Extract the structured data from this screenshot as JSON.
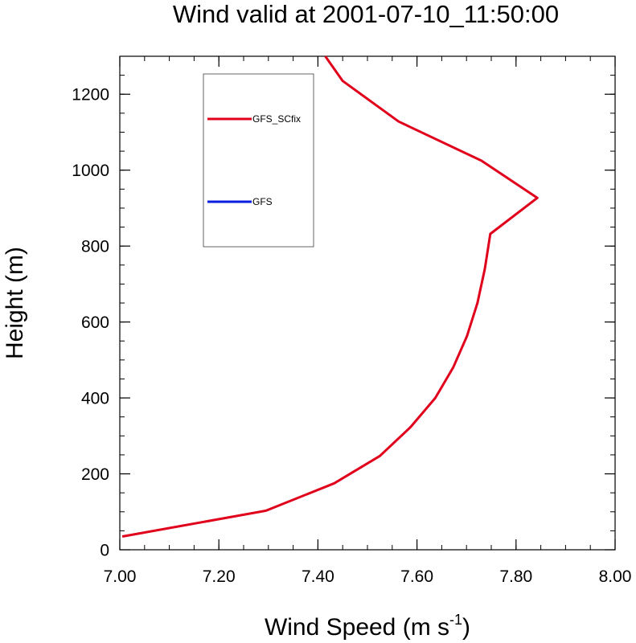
{
  "chart_data": {
    "type": "line",
    "title": "Wind valid at 2001-07-10_11:50:00",
    "xlabel": "Wind Speed (m s",
    "xlabel_sup": "-1",
    "xlabel_end": ")",
    "ylabel": "Height (m)",
    "xlim": [
      7.0,
      8.0
    ],
    "ylim": [
      0,
      1300
    ],
    "x_ticks": [
      "7.00",
      "7.20",
      "7.40",
      "7.60",
      "7.80",
      "8.00"
    ],
    "y_ticks": [
      "0",
      "200",
      "400",
      "600",
      "800",
      "1000",
      "1200"
    ],
    "legend_position": "top-left",
    "series": [
      {
        "name": "GFS_SCfix",
        "color": "#e0001b",
        "points": [
          {
            "x": 7.005,
            "y": 35
          },
          {
            "x": 7.295,
            "y": 103
          },
          {
            "x": 7.433,
            "y": 175
          },
          {
            "x": 7.525,
            "y": 247
          },
          {
            "x": 7.587,
            "y": 323
          },
          {
            "x": 7.637,
            "y": 400
          },
          {
            "x": 7.673,
            "y": 480
          },
          {
            "x": 7.701,
            "y": 563
          },
          {
            "x": 7.722,
            "y": 650
          },
          {
            "x": 7.737,
            "y": 740
          },
          {
            "x": 7.748,
            "y": 832
          },
          {
            "x": 7.843,
            "y": 927
          },
          {
            "x": 7.73,
            "y": 1025
          },
          {
            "x": 7.563,
            "y": 1128
          },
          {
            "x": 7.45,
            "y": 1235
          },
          {
            "x": 7.415,
            "y": 1300
          }
        ]
      },
      {
        "name": "GFS",
        "color": "#0a1ee0",
        "points": []
      }
    ]
  }
}
